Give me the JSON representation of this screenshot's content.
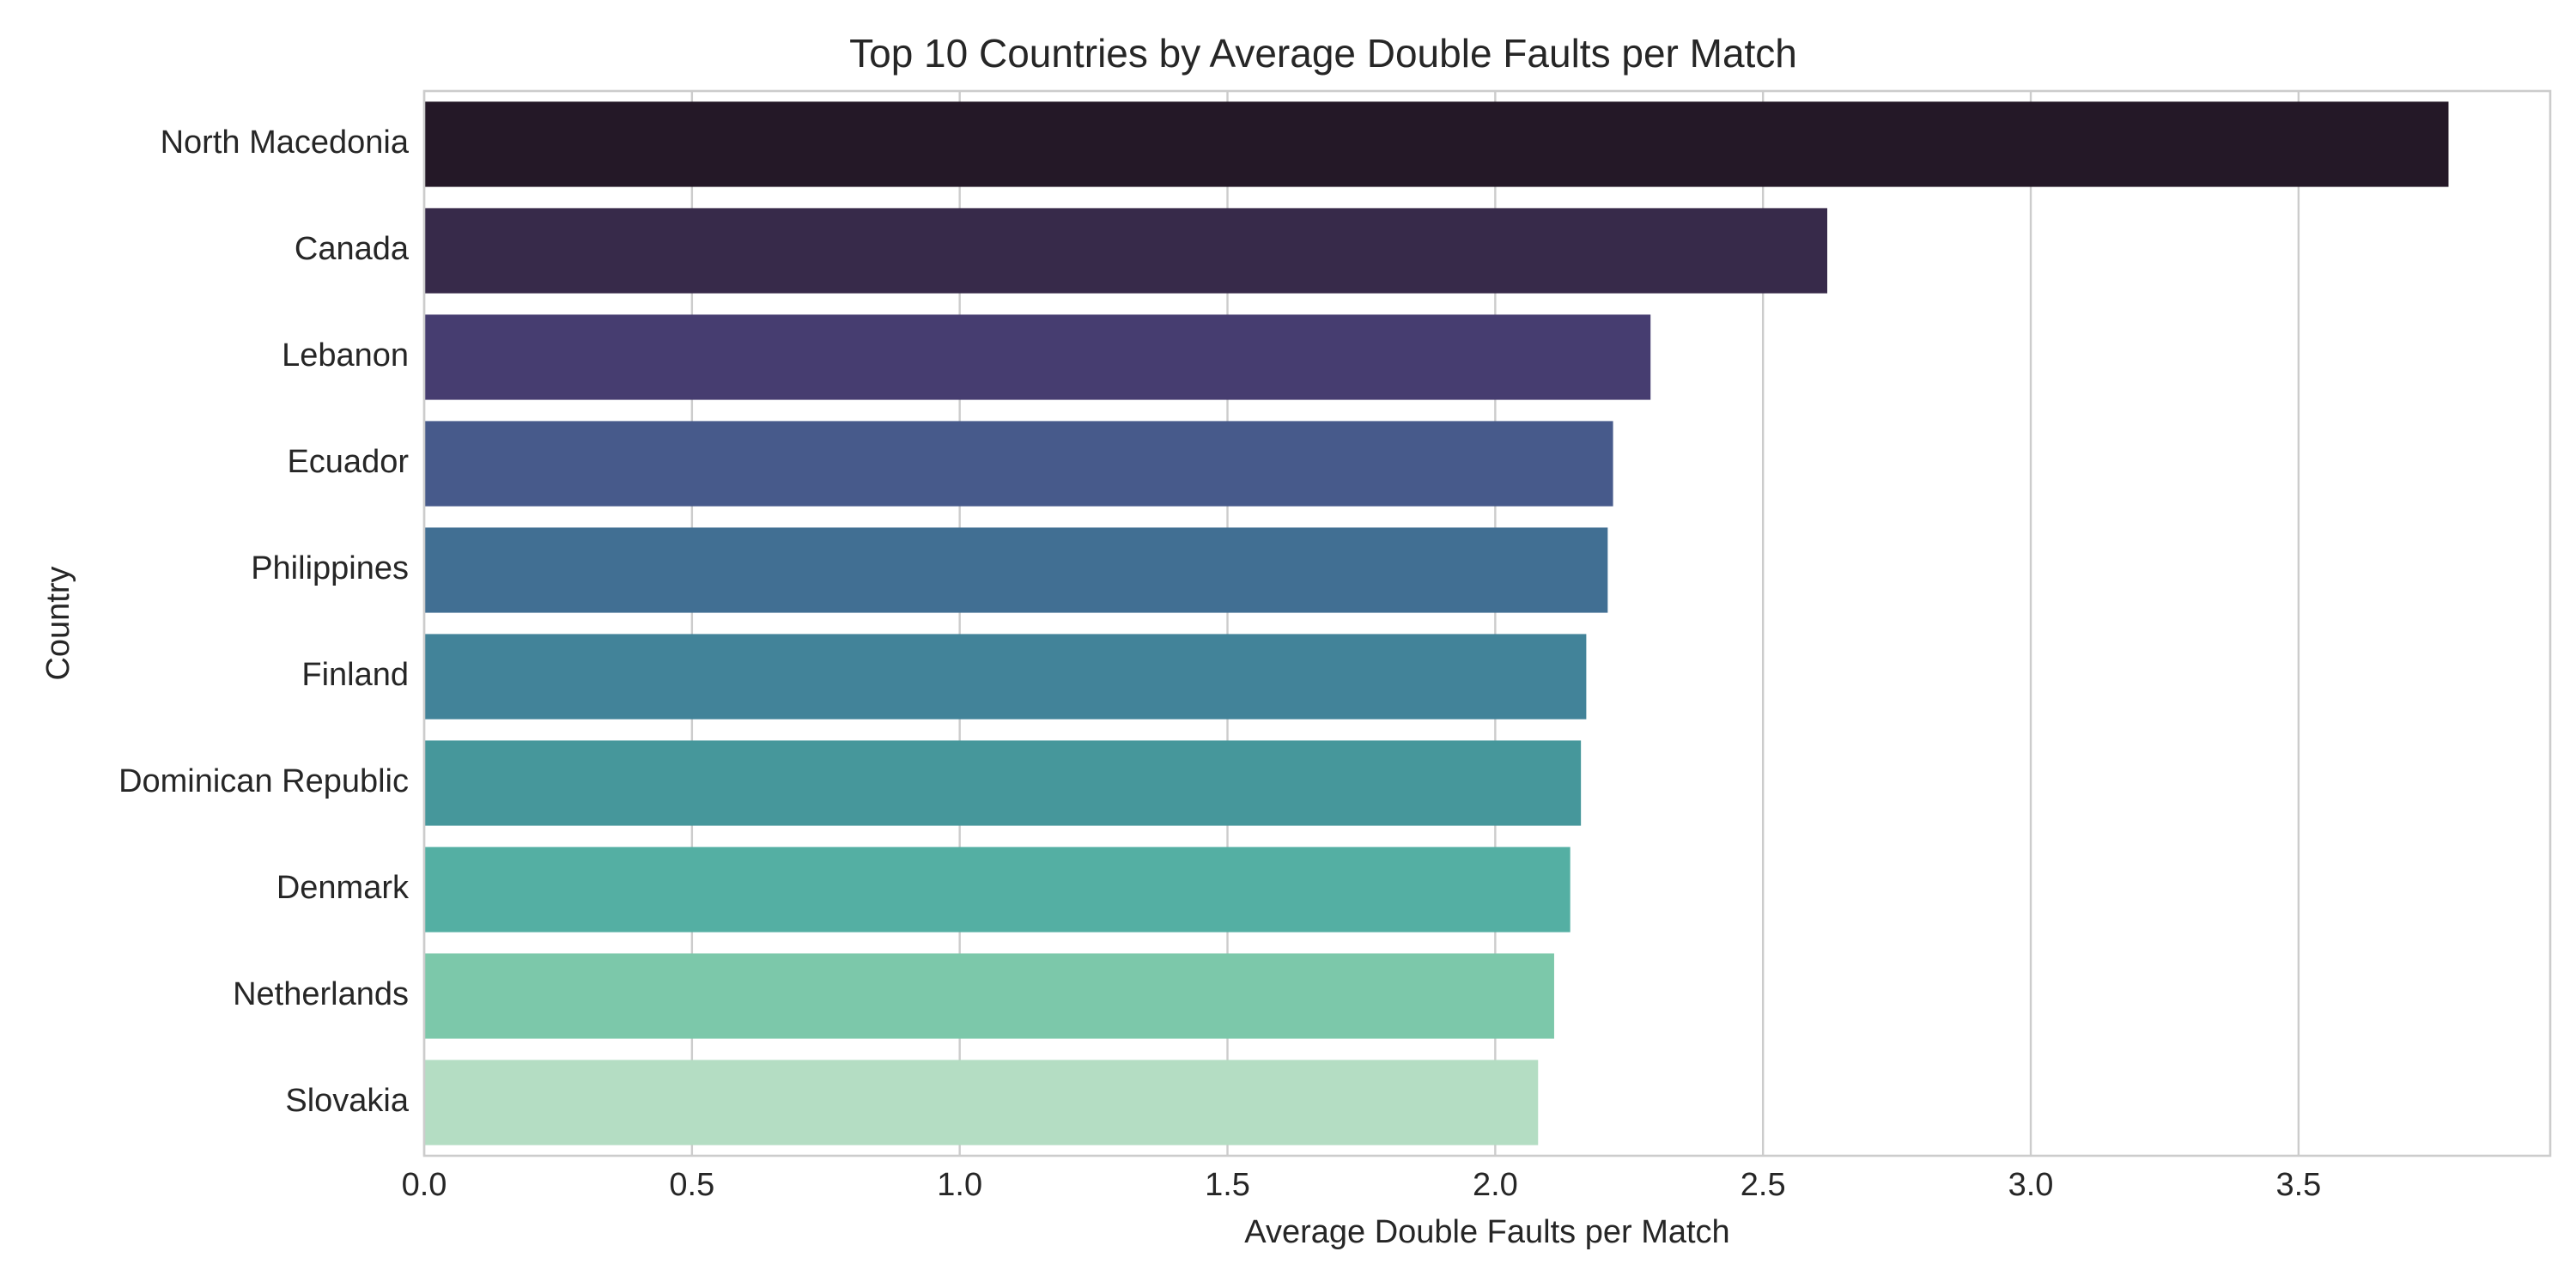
{
  "chart_data": {
    "type": "bar",
    "orientation": "horizontal",
    "title": "Top 10 Countries by Average Double Faults per Match",
    "xlabel": "Average Double Faults per Match",
    "ylabel": "Country",
    "categories": [
      "North Macedonia",
      "Canada",
      "Lebanon",
      "Ecuador",
      "Philippines",
      "Finland",
      "Dominican Republic",
      "Denmark",
      "Netherlands",
      "Slovakia"
    ],
    "values": [
      3.78,
      2.62,
      2.29,
      2.22,
      2.21,
      2.17,
      2.16,
      2.14,
      2.11,
      2.08
    ],
    "colors": [
      "#241827",
      "#372a4a",
      "#463d70",
      "#475a8b",
      "#416f93",
      "#428399",
      "#46979b",
      "#54afa3",
      "#7cc8aa",
      "#b4ddc3"
    ],
    "xlim": [
      0,
      3.97
    ],
    "xticks": [
      "0.0",
      "0.5",
      "1.0",
      "1.5",
      "2.0",
      "2.5",
      "3.0",
      "3.5"
    ],
    "grid": "vertical"
  }
}
